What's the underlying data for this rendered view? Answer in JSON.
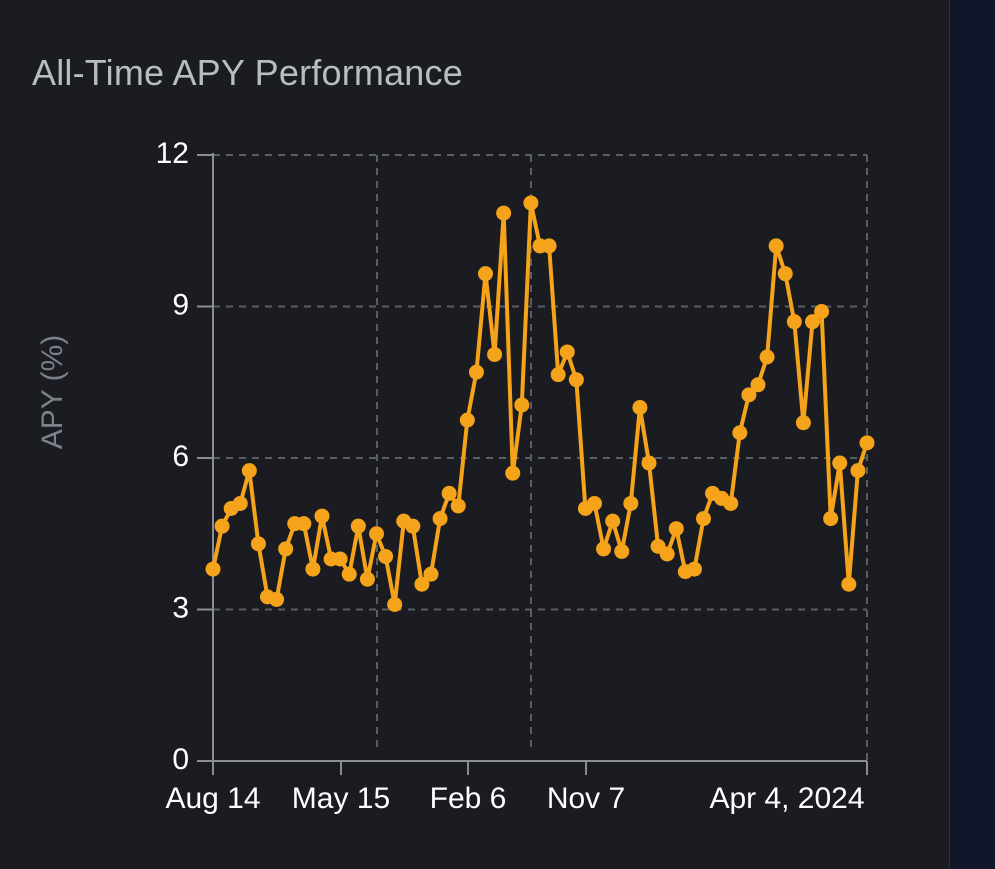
{
  "title": "All-Time APY Performance",
  "colors": {
    "line": "#f5a31a",
    "grid": "#5a5d63",
    "axis": "#8a8d93",
    "card_bg": "#1a1c21",
    "page_bg": "#0f1420"
  },
  "chart_data": {
    "type": "line",
    "title": "All-Time APY Performance",
    "xlabel": "",
    "ylabel": "APY (%)",
    "ylim": [
      0,
      12
    ],
    "yticks": [
      0,
      3,
      6,
      9,
      12
    ],
    "xtick_labels": [
      "Aug 14",
      "May 15",
      "Feb 6",
      "Nov 7",
      "Apr 4, 2024"
    ],
    "grid": "dashed",
    "legend": "none",
    "series": [
      {
        "values": [
          3.8,
          4.65,
          5.0,
          5.1,
          5.75,
          4.3,
          3.25,
          3.2,
          4.2,
          4.7,
          4.7,
          3.8,
          4.85,
          4.0,
          4.0,
          3.7,
          4.65,
          3.6,
          4.5,
          4.05,
          3.1,
          4.75,
          4.65,
          3.5,
          3.7,
          4.8,
          5.3,
          5.05,
          6.75,
          7.7,
          9.65,
          8.05,
          10.85,
          5.7,
          7.05,
          11.05,
          10.2,
          10.2,
          7.65,
          8.1,
          7.55,
          5.0,
          5.1,
          4.2,
          4.75,
          4.15,
          5.1,
          7.0,
          5.9,
          4.25,
          4.1,
          4.6,
          3.75,
          3.8,
          4.8,
          5.3,
          5.2,
          5.1,
          6.5,
          7.25,
          7.45,
          8.0,
          10.2,
          9.65,
          8.7,
          6.7,
          8.7,
          8.9,
          4.8,
          5.9,
          3.5,
          5.75,
          6.3
        ]
      }
    ]
  }
}
